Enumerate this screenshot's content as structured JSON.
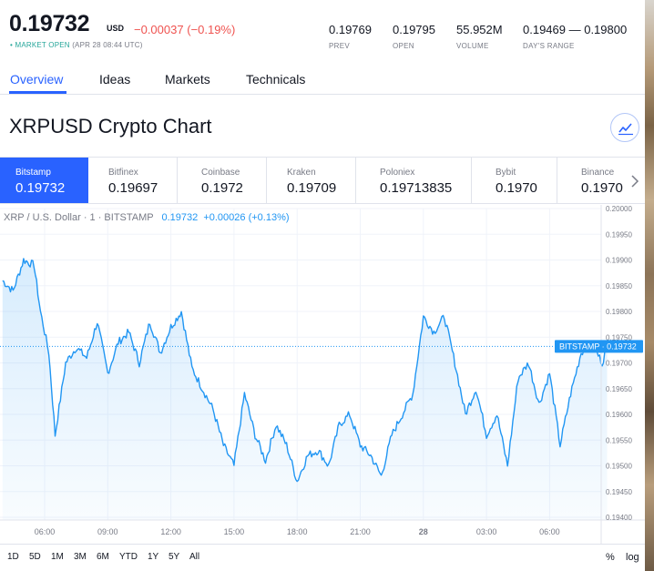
{
  "quote": {
    "price": "0.19732",
    "currency": "USD",
    "change": "−0.00037 (−0.19%)",
    "status_dot": "•",
    "status_open": "MARKET OPEN",
    "status_time": "(APR 28 08:44 UTC)",
    "stats": [
      {
        "value": "0.19769",
        "label": "PREV"
      },
      {
        "value": "0.19795",
        "label": "OPEN"
      },
      {
        "value": "55.952M",
        "label": "VOLUME"
      },
      {
        "value": "0.19469 — 0.19800",
        "label": "DAY'S RANGE"
      }
    ]
  },
  "tabs": [
    {
      "label": "Overview",
      "active": true
    },
    {
      "label": "Ideas",
      "active": false
    },
    {
      "label": "Markets",
      "active": false
    },
    {
      "label": "Technicals",
      "active": false
    }
  ],
  "chart_title": "XRPUSD Crypto Chart",
  "exchanges": [
    {
      "name": "Bitstamp",
      "price": "0.19732",
      "active": true
    },
    {
      "name": "Bitfinex",
      "price": "0.19697",
      "active": false
    },
    {
      "name": "Coinbase",
      "price": "0.1972",
      "active": false
    },
    {
      "name": "Kraken",
      "price": "0.19709",
      "active": false
    },
    {
      "name": "Poloniex",
      "price": "0.19713835",
      "active": false
    },
    {
      "name": "Bybit",
      "price": "0.1970",
      "active": false
    },
    {
      "name": "Binance",
      "price": "0.1970",
      "active": false
    }
  ],
  "legend": {
    "symbol": "XRP / U.S. Dollar · 1 · BITSTAMP",
    "price": "0.19732",
    "change": "+0.00026 (+0.13%)"
  },
  "time_ranges": [
    "1D",
    "5D",
    "1M",
    "3M",
    "6M",
    "YTD",
    "1Y",
    "5Y",
    "All"
  ],
  "scale_options": [
    "%",
    "log"
  ],
  "colors": {
    "accent": "#2962ff",
    "line": "#2196f3",
    "negative": "#ef5350",
    "positive": "#26a69a"
  },
  "chart_data": {
    "type": "area",
    "series_name": "XRP / U.S. Dollar · 1 · BITSTAMP",
    "x_ticks": [
      "06:00",
      "09:00",
      "12:00",
      "15:00",
      "18:00",
      "21:00",
      "28",
      "03:00",
      "06:00"
    ],
    "y_ticks": [
      "0.20000",
      "0.19950",
      "0.19900",
      "0.19850",
      "0.19800",
      "0.19750",
      "0.19700",
      "0.19650",
      "0.19600",
      "0.19550",
      "0.19500",
      "0.19450",
      "0.19400"
    ],
    "ylim": [
      0.194,
      0.2
    ],
    "last_price_label": "BITSTAMP · 0.19732",
    "last_price": 0.19732,
    "x_hours": [
      4.0,
      4.5,
      5.0,
      5.5,
      5.8,
      6.2,
      6.5,
      7.0,
      7.5,
      8.0,
      8.5,
      9.0,
      9.5,
      10.0,
      10.5,
      11.0,
      11.5,
      12.0,
      12.5,
      13.0,
      13.5,
      14.0,
      14.5,
      15.0,
      15.5,
      16.0,
      16.5,
      17.0,
      17.5,
      18.0,
      18.5,
      19.0,
      19.5,
      20.0,
      20.5,
      21.0,
      21.5,
      22.0,
      22.5,
      23.0,
      23.5,
      24.0,
      24.5,
      25.0,
      25.5,
      26.0,
      26.5,
      27.0,
      27.5,
      28.0,
      28.5,
      29.0,
      29.5,
      30.0,
      30.5,
      31.0,
      31.5,
      32.0,
      32.5,
      32.73
    ],
    "values": [
      0.1986,
      0.1984,
      0.199,
      0.1989,
      0.198,
      0.1972,
      0.1956,
      0.197,
      0.1973,
      0.1971,
      0.1978,
      0.1968,
      0.1974,
      0.1976,
      0.197,
      0.1978,
      0.1972,
      0.1977,
      0.198,
      0.1969,
      0.1965,
      0.1961,
      0.1954,
      0.195,
      0.1964,
      0.1956,
      0.1951,
      0.1958,
      0.1954,
      0.1947,
      0.1952,
      0.1953,
      0.195,
      0.1958,
      0.196,
      0.1954,
      0.1952,
      0.1948,
      0.1956,
      0.196,
      0.1964,
      0.1979,
      0.1976,
      0.1979,
      0.197,
      0.196,
      0.1965,
      0.1956,
      0.196,
      0.195,
      0.1967,
      0.197,
      0.1962,
      0.1968,
      0.1954,
      0.1964,
      0.1972,
      0.1974,
      0.197,
      0.19732
    ]
  }
}
